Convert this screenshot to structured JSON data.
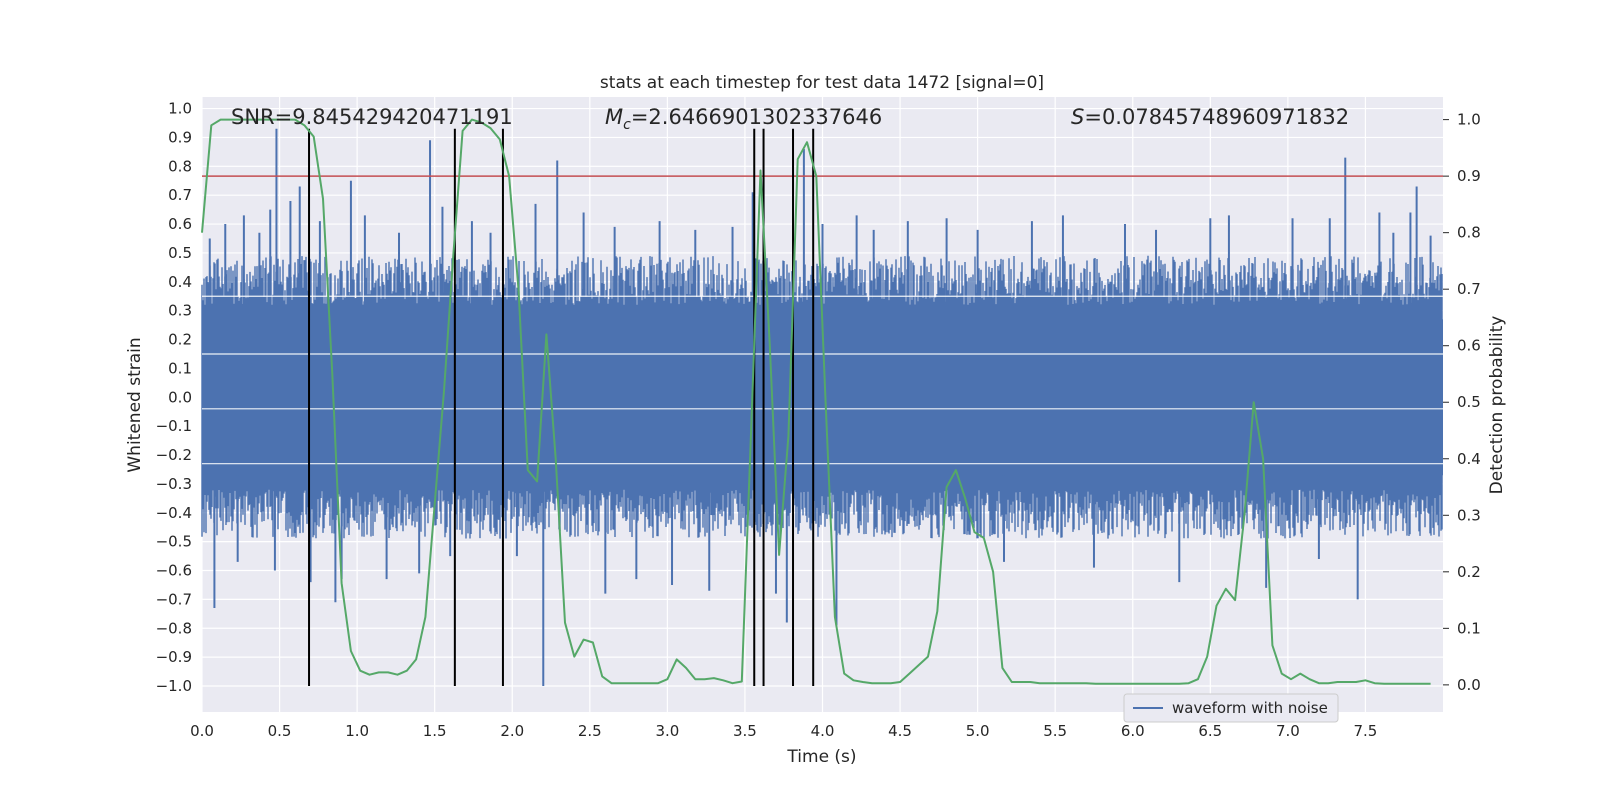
{
  "chart_data": {
    "type": "line",
    "title": "stats at each timestep for test data 1472 [signal=0]",
    "xlabel": "Time (s)",
    "ylabel": "Whitened strain",
    "y2label": "Detection probability",
    "xlim": [
      0.0,
      8.0
    ],
    "ylim": [
      -1.09,
      1.04
    ],
    "y2lim": [
      -0.048,
      1.04
    ],
    "xticks": [
      0.0,
      0.5,
      1.0,
      1.5,
      2.0,
      2.5,
      3.0,
      3.5,
      4.0,
      4.5,
      5.0,
      5.5,
      6.0,
      6.5,
      7.0,
      7.5
    ],
    "yticks": [
      -1.0,
      -0.9,
      -0.8,
      -0.7,
      -0.6,
      -0.5,
      -0.4,
      -0.3,
      -0.2,
      -0.1,
      0.0,
      0.1,
      0.2,
      0.3,
      0.4,
      0.5,
      0.6,
      0.7,
      0.8,
      0.9,
      1.0
    ],
    "y2ticks": [
      0.0,
      0.1,
      0.2,
      0.3,
      0.4,
      0.5,
      0.6,
      0.7,
      0.8,
      0.9,
      1.0
    ],
    "grid": true,
    "legend": {
      "position": "lower-right",
      "entries": [
        "waveform with noise"
      ]
    },
    "annotations": {
      "snr": "SNR=9.845429420471191",
      "mc_symbol": "M",
      "mc_subscript": "c",
      "mc_value": "=2.6466901302337646",
      "s_symbol": "S",
      "s_value": "=0.07845748960971832"
    },
    "threshold": {
      "axis": "right",
      "value": 0.9,
      "color": "#c44e52"
    },
    "vertical_lines": [
      0.69,
      1.63,
      1.94,
      3.56,
      3.62,
      3.81,
      3.94
    ],
    "vertical_line_range": [
      -1.0,
      0.93
    ],
    "waveform": {
      "name": "waveform with noise",
      "color": "#4c72b0",
      "band_upper": 0.35,
      "band_lower": -0.35,
      "spikes": [
        [
          0.05,
          0.55
        ],
        [
          0.08,
          -0.73
        ],
        [
          0.15,
          0.6
        ],
        [
          0.23,
          -0.57
        ],
        [
          0.27,
          0.63
        ],
        [
          0.37,
          0.57
        ],
        [
          0.44,
          0.65
        ],
        [
          0.48,
          0.93
        ],
        [
          0.47,
          -0.6
        ],
        [
          0.57,
          0.68
        ],
        [
          0.63,
          0.73
        ],
        [
          0.7,
          -0.64
        ],
        [
          0.76,
          0.61
        ],
        [
          0.86,
          -0.71
        ],
        [
          0.9,
          -0.63
        ],
        [
          0.96,
          0.75
        ],
        [
          1.05,
          0.63
        ],
        [
          1.19,
          -0.63
        ],
        [
          1.27,
          0.57
        ],
        [
          1.4,
          -0.61
        ],
        [
          1.47,
          0.89
        ],
        [
          1.55,
          0.66
        ],
        [
          1.6,
          -0.55
        ],
        [
          1.74,
          0.61
        ],
        [
          1.86,
          0.57
        ],
        [
          2.03,
          -0.55
        ],
        [
          2.15,
          0.67
        ],
        [
          2.2,
          -1.0
        ],
        [
          2.29,
          0.82
        ],
        [
          2.46,
          0.64
        ],
        [
          2.6,
          -0.68
        ],
        [
          2.66,
          0.59
        ],
        [
          2.8,
          -0.63
        ],
        [
          2.95,
          0.61
        ],
        [
          3.03,
          -0.65
        ],
        [
          3.18,
          0.58
        ],
        [
          3.27,
          -0.67
        ],
        [
          3.42,
          0.59
        ],
        [
          3.55,
          0.71
        ],
        [
          3.62,
          0.76
        ],
        [
          3.7,
          -0.68
        ],
        [
          3.77,
          -0.78
        ],
        [
          3.88,
          0.86
        ],
        [
          4.0,
          0.6
        ],
        [
          4.09,
          -0.79
        ],
        [
          4.22,
          0.63
        ],
        [
          4.33,
          0.58
        ],
        [
          4.55,
          0.61
        ],
        [
          4.8,
          0.62
        ],
        [
          5.0,
          0.58
        ],
        [
          5.17,
          -0.57
        ],
        [
          5.35,
          0.61
        ],
        [
          5.55,
          0.63
        ],
        [
          5.75,
          -0.59
        ],
        [
          5.95,
          0.6
        ],
        [
          6.15,
          0.58
        ],
        [
          6.3,
          -0.64
        ],
        [
          6.5,
          0.62
        ],
        [
          6.62,
          0.63
        ],
        [
          6.86,
          -0.66
        ],
        [
          7.03,
          0.62
        ],
        [
          7.2,
          -0.56
        ],
        [
          7.27,
          0.62
        ],
        [
          7.37,
          0.83
        ],
        [
          7.45,
          -0.7
        ],
        [
          7.59,
          0.64
        ],
        [
          7.68,
          0.57
        ],
        [
          7.79,
          0.64
        ],
        [
          7.83,
          0.73
        ],
        [
          7.92,
          0.56
        ]
      ]
    },
    "probability": {
      "color": "#55a868",
      "x": [
        0.0,
        0.06,
        0.12,
        0.18,
        0.24,
        0.3,
        0.36,
        0.42,
        0.48,
        0.54,
        0.6,
        0.66,
        0.72,
        0.78,
        0.84,
        0.9,
        0.96,
        1.02,
        1.08,
        1.14,
        1.2,
        1.26,
        1.32,
        1.38,
        1.44,
        1.5,
        1.56,
        1.62,
        1.68,
        1.74,
        1.8,
        1.86,
        1.92,
        1.98,
        2.04,
        2.1,
        2.16,
        2.22,
        2.28,
        2.34,
        2.4,
        2.46,
        2.52,
        2.58,
        2.64,
        2.7,
        2.76,
        2.82,
        2.88,
        2.94,
        3.0,
        3.06,
        3.12,
        3.18,
        3.24,
        3.3,
        3.36,
        3.42,
        3.48,
        3.54,
        3.6,
        3.66,
        3.72,
        3.78,
        3.84,
        3.9,
        3.96,
        4.02,
        4.08,
        4.14,
        4.2,
        4.26,
        4.32,
        4.38,
        4.44,
        4.5,
        4.56,
        4.62,
        4.68,
        4.74,
        4.8,
        4.86,
        4.92,
        4.98,
        5.04,
        5.1,
        5.16,
        5.22,
        5.28,
        5.34,
        5.4,
        5.46,
        5.52,
        5.58,
        5.64,
        5.7,
        5.76,
        5.82,
        5.88,
        5.94,
        6.0,
        6.06,
        6.12,
        6.18,
        6.24,
        6.3,
        6.36,
        6.42,
        6.48,
        6.54,
        6.6,
        6.66,
        6.72,
        6.78,
        6.84,
        6.9,
        6.96,
        7.02,
        7.08,
        7.14,
        7.2,
        7.26,
        7.32,
        7.38,
        7.44,
        7.5,
        7.56,
        7.62,
        7.68,
        7.74,
        7.8,
        7.86,
        7.92
      ],
      "values": [
        0.8,
        0.99,
        1.0,
        1.0,
        1.0,
        1.0,
        1.0,
        1.0,
        1.0,
        1.0,
        1.0,
        0.99,
        0.97,
        0.86,
        0.55,
        0.18,
        0.06,
        0.025,
        0.018,
        0.022,
        0.022,
        0.018,
        0.025,
        0.045,
        0.12,
        0.32,
        0.52,
        0.76,
        0.98,
        1.0,
        0.995,
        0.985,
        0.965,
        0.9,
        0.7,
        0.38,
        0.36,
        0.62,
        0.4,
        0.11,
        0.05,
        0.08,
        0.075,
        0.015,
        0.003,
        0.003,
        0.003,
        0.003,
        0.003,
        0.003,
        0.01,
        0.045,
        0.03,
        0.01,
        0.01,
        0.012,
        0.008,
        0.003,
        0.006,
        0.45,
        0.91,
        0.6,
        0.23,
        0.44,
        0.93,
        0.96,
        0.9,
        0.5,
        0.12,
        0.02,
        0.008,
        0.005,
        0.003,
        0.003,
        0.003,
        0.005,
        0.02,
        0.035,
        0.05,
        0.13,
        0.35,
        0.38,
        0.33,
        0.27,
        0.26,
        0.2,
        0.03,
        0.005,
        0.005,
        0.005,
        0.003,
        0.003,
        0.003,
        0.003,
        0.003,
        0.003,
        0.002,
        0.002,
        0.002,
        0.002,
        0.002,
        0.002,
        0.002,
        0.002,
        0.002,
        0.002,
        0.003,
        0.01,
        0.05,
        0.14,
        0.17,
        0.15,
        0.3,
        0.5,
        0.4,
        0.07,
        0.02,
        0.01,
        0.02,
        0.01,
        0.003,
        0.003,
        0.005,
        0.005,
        0.005,
        0.008,
        0.003,
        0.002,
        0.002,
        0.002,
        0.002,
        0.002,
        0.002
      ]
    }
  }
}
